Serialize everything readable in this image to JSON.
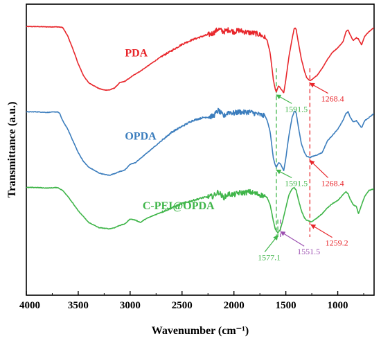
{
  "chart_data": {
    "type": "line",
    "xlabel": "Wavenumber (cm⁻¹)",
    "ylabel": "Transmittance (a.u.)",
    "xlim": [
      4000,
      650
    ],
    "x_reversed": true,
    "xticks": [
      4000,
      3500,
      3000,
      2500,
      2000,
      1500,
      1000
    ],
    "yticks_shown": false,
    "grid": false,
    "series": [
      {
        "name": "PDA",
        "color": "#e8262b",
        "points": [
          [
            4000,
            0.923
          ],
          [
            3900,
            0.923
          ],
          [
            3800,
            0.922
          ],
          [
            3700,
            0.922
          ],
          [
            3650,
            0.92
          ],
          [
            3600,
            0.89
          ],
          [
            3550,
            0.845
          ],
          [
            3500,
            0.795
          ],
          [
            3450,
            0.755
          ],
          [
            3400,
            0.73
          ],
          [
            3300,
            0.71
          ],
          [
            3250,
            0.705
          ],
          [
            3200,
            0.705
          ],
          [
            3150,
            0.712
          ],
          [
            3100,
            0.73
          ],
          [
            3050,
            0.735
          ],
          [
            2950,
            0.76
          ],
          [
            2900,
            0.77
          ],
          [
            2800,
            0.795
          ],
          [
            2700,
            0.82
          ],
          [
            2600,
            0.84
          ],
          [
            2500,
            0.862
          ],
          [
            2400,
            0.878
          ],
          [
            2300,
            0.89
          ],
          [
            2200,
            0.9
          ],
          [
            2150,
            0.915
          ],
          [
            2100,
            0.905
          ],
          [
            2050,
            0.912
          ],
          [
            2000,
            0.905
          ],
          [
            1950,
            0.91
          ],
          [
            1900,
            0.905
          ],
          [
            1850,
            0.902
          ],
          [
            1800,
            0.9
          ],
          [
            1750,
            0.895
          ],
          [
            1700,
            0.885
          ],
          [
            1680,
            0.875
          ],
          [
            1650,
            0.83
          ],
          [
            1620,
            0.74
          ],
          [
            1600,
            0.705
          ],
          [
            1591,
            0.698
          ],
          [
            1570,
            0.72
          ],
          [
            1550,
            0.71
          ],
          [
            1520,
            0.695
          ],
          [
            1500,
            0.74
          ],
          [
            1470,
            0.82
          ],
          [
            1440,
            0.88
          ],
          [
            1420,
            0.915
          ],
          [
            1410,
            0.918
          ],
          [
            1400,
            0.912
          ],
          [
            1380,
            0.87
          ],
          [
            1350,
            0.81
          ],
          [
            1320,
            0.77
          ],
          [
            1300,
            0.748
          ],
          [
            1280,
            0.74
          ],
          [
            1268,
            0.738
          ],
          [
            1250,
            0.74
          ],
          [
            1200,
            0.755
          ],
          [
            1150,
            0.78
          ],
          [
            1100,
            0.81
          ],
          [
            1050,
            0.835
          ],
          [
            1000,
            0.85
          ],
          [
            950,
            0.87
          ],
          [
            920,
            0.905
          ],
          [
            900,
            0.912
          ],
          [
            880,
            0.895
          ],
          [
            850,
            0.875
          ],
          [
            820,
            0.885
          ],
          [
            800,
            0.88
          ],
          [
            770,
            0.86
          ],
          [
            740,
            0.89
          ],
          [
            700,
            0.905
          ],
          [
            650,
            0.92
          ]
        ]
      },
      {
        "name": "OPDA",
        "color": "#3b7dbd",
        "points": [
          [
            4000,
            0.63
          ],
          [
            3900,
            0.63
          ],
          [
            3800,
            0.628
          ],
          [
            3700,
            0.63
          ],
          [
            3680,
            0.625
          ],
          [
            3650,
            0.6
          ],
          [
            3600,
            0.57
          ],
          [
            3550,
            0.53
          ],
          [
            3500,
            0.49
          ],
          [
            3450,
            0.46
          ],
          [
            3400,
            0.44
          ],
          [
            3300,
            0.42
          ],
          [
            3250,
            0.415
          ],
          [
            3200,
            0.412
          ],
          [
            3150,
            0.418
          ],
          [
            3100,
            0.425
          ],
          [
            3050,
            0.43
          ],
          [
            3000,
            0.45
          ],
          [
            2950,
            0.455
          ],
          [
            2900,
            0.47
          ],
          [
            2800,
            0.5
          ],
          [
            2700,
            0.53
          ],
          [
            2600,
            0.56
          ],
          [
            2500,
            0.58
          ],
          [
            2400,
            0.6
          ],
          [
            2300,
            0.61
          ],
          [
            2200,
            0.615
          ],
          [
            2150,
            0.635
          ],
          [
            2100,
            0.615
          ],
          [
            2050,
            0.63
          ],
          [
            2000,
            0.625
          ],
          [
            1950,
            0.63
          ],
          [
            1900,
            0.628
          ],
          [
            1850,
            0.63
          ],
          [
            1800,
            0.625
          ],
          [
            1750,
            0.62
          ],
          [
            1700,
            0.615
          ],
          [
            1680,
            0.6
          ],
          [
            1650,
            0.56
          ],
          [
            1620,
            0.47
          ],
          [
            1600,
            0.445
          ],
          [
            1591,
            0.44
          ],
          [
            1570,
            0.455
          ],
          [
            1550,
            0.45
          ],
          [
            1520,
            0.428
          ],
          [
            1500,
            0.47
          ],
          [
            1470,
            0.55
          ],
          [
            1440,
            0.61
          ],
          [
            1420,
            0.63
          ],
          [
            1410,
            0.633
          ],
          [
            1400,
            0.625
          ],
          [
            1380,
            0.58
          ],
          [
            1350,
            0.52
          ],
          [
            1320,
            0.49
          ],
          [
            1300,
            0.478
          ],
          [
            1280,
            0.475
          ],
          [
            1268,
            0.473
          ],
          [
            1250,
            0.476
          ],
          [
            1200,
            0.482
          ],
          [
            1150,
            0.49
          ],
          [
            1100,
            0.53
          ],
          [
            1050,
            0.55
          ],
          [
            1000,
            0.57
          ],
          [
            950,
            0.6
          ],
          [
            920,
            0.625
          ],
          [
            900,
            0.63
          ],
          [
            880,
            0.612
          ],
          [
            850,
            0.595
          ],
          [
            820,
            0.6
          ],
          [
            800,
            0.59
          ],
          [
            770,
            0.575
          ],
          [
            740,
            0.6
          ],
          [
            700,
            0.61
          ],
          [
            650,
            0.625
          ]
        ]
      },
      {
        "name": "C-PEI@OPDA",
        "color": "#3fb549",
        "points": [
          [
            4000,
            0.37
          ],
          [
            3900,
            0.37
          ],
          [
            3800,
            0.368
          ],
          [
            3700,
            0.37
          ],
          [
            3650,
            0.36
          ],
          [
            3600,
            0.34
          ],
          [
            3550,
            0.315
          ],
          [
            3500,
            0.29
          ],
          [
            3450,
            0.27
          ],
          [
            3400,
            0.25
          ],
          [
            3300,
            0.232
          ],
          [
            3200,
            0.228
          ],
          [
            3150,
            0.232
          ],
          [
            3100,
            0.24
          ],
          [
            3050,
            0.245
          ],
          [
            3000,
            0.262
          ],
          [
            2950,
            0.258
          ],
          [
            2900,
            0.25
          ],
          [
            2850,
            0.262
          ],
          [
            2800,
            0.27
          ],
          [
            2700,
            0.285
          ],
          [
            2600,
            0.3
          ],
          [
            2500,
            0.315
          ],
          [
            2400,
            0.325
          ],
          [
            2300,
            0.335
          ],
          [
            2200,
            0.34
          ],
          [
            2150,
            0.355
          ],
          [
            2100,
            0.335
          ],
          [
            2050,
            0.348
          ],
          [
            2000,
            0.345
          ],
          [
            1950,
            0.352
          ],
          [
            1900,
            0.352
          ],
          [
            1850,
            0.355
          ],
          [
            1800,
            0.35
          ],
          [
            1750,
            0.345
          ],
          [
            1700,
            0.34
          ],
          [
            1680,
            0.335
          ],
          [
            1650,
            0.31
          ],
          [
            1620,
            0.255
          ],
          [
            1600,
            0.225
          ],
          [
            1577,
            0.215
          ],
          [
            1560,
            0.222
          ],
          [
            1551,
            0.228
          ],
          [
            1530,
            0.255
          ],
          [
            1500,
            0.3
          ],
          [
            1470,
            0.345
          ],
          [
            1440,
            0.365
          ],
          [
            1420,
            0.37
          ],
          [
            1400,
            0.36
          ],
          [
            1380,
            0.33
          ],
          [
            1350,
            0.29
          ],
          [
            1320,
            0.265
          ],
          [
            1300,
            0.258
          ],
          [
            1280,
            0.255
          ],
          [
            1259,
            0.252
          ],
          [
            1240,
            0.255
          ],
          [
            1200,
            0.265
          ],
          [
            1150,
            0.28
          ],
          [
            1100,
            0.3
          ],
          [
            1050,
            0.315
          ],
          [
            1000,
            0.325
          ],
          [
            950,
            0.345
          ],
          [
            920,
            0.355
          ],
          [
            900,
            0.348
          ],
          [
            880,
            0.33
          ],
          [
            850,
            0.31
          ],
          [
            820,
            0.305
          ],
          [
            800,
            0.28
          ],
          [
            780,
            0.3
          ],
          [
            740,
            0.34
          ],
          [
            700,
            0.36
          ],
          [
            650,
            0.365
          ]
        ]
      }
    ],
    "series_labels": [
      {
        "text": "PDA",
        "x": 3050,
        "y": 0.82,
        "color": "#e8262b"
      },
      {
        "text": "OPDA",
        "x": 3050,
        "y": 0.535,
        "color": "#3b7dbd"
      },
      {
        "text": "C-PEI@OPDA",
        "x": 2880,
        "y": 0.295,
        "color": "#3fb549"
      }
    ],
    "reference_lines": [
      {
        "x": 1591.5,
        "y_from": 0.2,
        "y_to": 0.78,
        "color": "#3fb549"
      },
      {
        "x": 1268.4,
        "y_from": 0.2,
        "y_to": 0.78,
        "color": "#e8262b"
      },
      {
        "x": 1577.1,
        "y_from": 0.2,
        "y_to": 0.26,
        "color": "#3fb549"
      },
      {
        "x": 1551.5,
        "y_from": 0.2,
        "y_to": 0.26,
        "color": "#9b4fb0"
      }
    ],
    "annotations": [
      {
        "text": "1591.5",
        "x": 1591.5,
        "y": 0.698,
        "text_x": 1510,
        "text_y": 0.63,
        "color": "#3fb549"
      },
      {
        "text": "1268.4",
        "x": 1268.4,
        "y": 0.738,
        "text_x": 1160,
        "text_y": 0.665,
        "color": "#e8262b"
      },
      {
        "text": "1591.5",
        "x": 1591.5,
        "y": 0.44,
        "text_x": 1510,
        "text_y": 0.375,
        "color": "#3fb549"
      },
      {
        "text": "1268.4",
        "x": 1268.4,
        "y": 0.473,
        "text_x": 1160,
        "text_y": 0.375,
        "color": "#e8262b"
      },
      {
        "text": "1577.1",
        "x": 1577.1,
        "y": 0.215,
        "text_x": 1770,
        "text_y": 0.12,
        "color": "#3fb549"
      },
      {
        "text": "1551.5",
        "x": 1551.5,
        "y": 0.228,
        "text_x": 1390,
        "text_y": 0.14,
        "color": "#9b4fb0"
      },
      {
        "text": "1259.2",
        "x": 1259.2,
        "y": 0.252,
        "text_x": 1120,
        "text_y": 0.17,
        "color": "#e8262b"
      }
    ]
  }
}
